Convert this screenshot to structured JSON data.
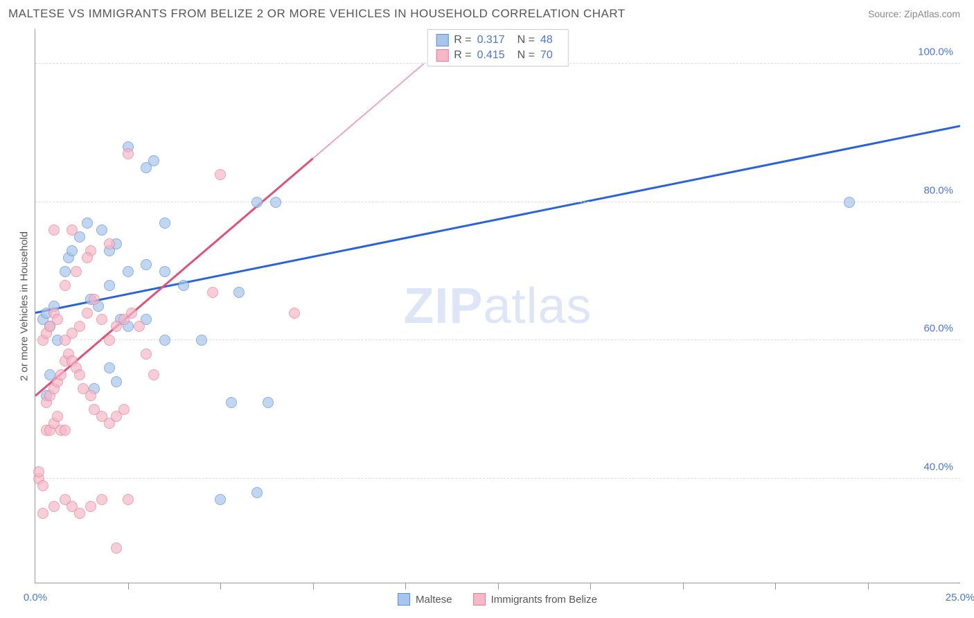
{
  "header": {
    "title": "MALTESE VS IMMIGRANTS FROM BELIZE 2 OR MORE VEHICLES IN HOUSEHOLD CORRELATION CHART",
    "source": "Source: ZipAtlas.com"
  },
  "chart": {
    "type": "scatter",
    "ylabel": "2 or more Vehicles in Household",
    "watermark_zip": "ZIP",
    "watermark_atlas": "atlas",
    "xlim": [
      0,
      25
    ],
    "ylim": [
      25,
      105
    ],
    "yticks": [
      {
        "v": 40,
        "label": "40.0%"
      },
      {
        "v": 60,
        "label": "60.0%"
      },
      {
        "v": 80,
        "label": "80.0%"
      },
      {
        "v": 100,
        "label": "100.0%"
      }
    ],
    "xticks_minor": [
      2.5,
      5,
      7.5,
      10,
      12.5,
      15,
      17.5,
      20,
      22.5
    ],
    "xticks_labels": [
      {
        "v": 0,
        "label": "0.0%"
      },
      {
        "v": 25,
        "label": "25.0%"
      }
    ],
    "series": [
      {
        "name": "Maltese",
        "fill": "#a8c5ec",
        "stroke": "#5b8dd6",
        "r_label": "R =",
        "r_value": "0.317",
        "n_label": "N =",
        "n_value": "48",
        "regression": {
          "x1": 0,
          "y1": 64,
          "x2": 25,
          "y2": 91,
          "solid_until_x": 25
        },
        "line_color": "#2962d9",
        "points": [
          [
            0.2,
            63
          ],
          [
            0.3,
            64
          ],
          [
            0.4,
            62
          ],
          [
            0.5,
            65
          ],
          [
            0.6,
            60
          ],
          [
            0.3,
            52
          ],
          [
            0.4,
            55
          ],
          [
            2.5,
            88
          ],
          [
            3.0,
            85
          ],
          [
            3.2,
            86
          ],
          [
            3.5,
            77
          ],
          [
            1.4,
            77
          ],
          [
            1.8,
            76
          ],
          [
            1.2,
            75
          ],
          [
            2.0,
            73
          ],
          [
            2.2,
            74
          ],
          [
            2.0,
            68
          ],
          [
            2.5,
            70
          ],
          [
            3.0,
            71
          ],
          [
            3.5,
            70
          ],
          [
            4.0,
            68
          ],
          [
            4.5,
            60
          ],
          [
            5.5,
            67
          ],
          [
            6.0,
            80
          ],
          [
            6.5,
            80
          ],
          [
            2.3,
            63
          ],
          [
            2.5,
            62
          ],
          [
            3.0,
            63
          ],
          [
            1.5,
            66
          ],
          [
            1.7,
            65
          ],
          [
            0.8,
            70
          ],
          [
            0.9,
            72
          ],
          [
            1.0,
            73
          ],
          [
            2.0,
            56
          ],
          [
            2.2,
            54
          ],
          [
            1.6,
            53
          ],
          [
            3.5,
            60
          ],
          [
            5.3,
            51
          ],
          [
            6.3,
            51
          ],
          [
            5.0,
            37
          ],
          [
            6.0,
            38
          ],
          [
            22.0,
            80
          ]
        ]
      },
      {
        "name": "Immigrants from Belize",
        "fill": "#f5b8c7",
        "stroke": "#e87a9a",
        "r_label": "R =",
        "r_value": "0.415",
        "n_label": "N =",
        "n_value": "70",
        "regression": {
          "x1": 0,
          "y1": 52,
          "x2": 10.5,
          "y2": 100,
          "solid_until_x": 7.5
        },
        "line_color": "#e05078",
        "points": [
          [
            0.1,
            40
          ],
          [
            0.1,
            41
          ],
          [
            0.2,
            39
          ],
          [
            0.3,
            47
          ],
          [
            0.4,
            47
          ],
          [
            0.5,
            48
          ],
          [
            0.6,
            49
          ],
          [
            0.7,
            47
          ],
          [
            0.8,
            47
          ],
          [
            0.3,
            51
          ],
          [
            0.4,
            52
          ],
          [
            0.5,
            53
          ],
          [
            0.6,
            54
          ],
          [
            0.7,
            55
          ],
          [
            0.8,
            57
          ],
          [
            0.9,
            58
          ],
          [
            1.0,
            57
          ],
          [
            1.1,
            56
          ],
          [
            1.2,
            55
          ],
          [
            1.3,
            53
          ],
          [
            1.5,
            52
          ],
          [
            1.6,
            50
          ],
          [
            1.8,
            49
          ],
          [
            2.0,
            48
          ],
          [
            2.2,
            49
          ],
          [
            2.4,
            50
          ],
          [
            0.2,
            60
          ],
          [
            0.3,
            61
          ],
          [
            0.4,
            62
          ],
          [
            0.5,
            64
          ],
          [
            0.6,
            63
          ],
          [
            0.8,
            60
          ],
          [
            1.0,
            61
          ],
          [
            1.2,
            62
          ],
          [
            1.4,
            64
          ],
          [
            1.6,
            66
          ],
          [
            1.8,
            63
          ],
          [
            2.0,
            60
          ],
          [
            2.2,
            62
          ],
          [
            2.4,
            63
          ],
          [
            2.6,
            64
          ],
          [
            2.8,
            62
          ],
          [
            3.0,
            58
          ],
          [
            3.2,
            55
          ],
          [
            0.5,
            76
          ],
          [
            1.0,
            76
          ],
          [
            1.5,
            73
          ],
          [
            2.0,
            74
          ],
          [
            0.8,
            68
          ],
          [
            1.1,
            70
          ],
          [
            1.4,
            72
          ],
          [
            2.5,
            87
          ],
          [
            5.0,
            84
          ],
          [
            4.8,
            67
          ],
          [
            7.0,
            64
          ],
          [
            0.2,
            35
          ],
          [
            0.5,
            36
          ],
          [
            0.8,
            37
          ],
          [
            1.0,
            36
          ],
          [
            1.2,
            35
          ],
          [
            1.5,
            36
          ],
          [
            1.8,
            37
          ],
          [
            2.2,
            30
          ],
          [
            2.5,
            37
          ]
        ]
      }
    ]
  }
}
